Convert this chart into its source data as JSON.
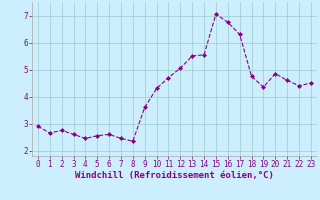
{
  "x": [
    0,
    1,
    2,
    3,
    4,
    5,
    6,
    7,
    8,
    9,
    10,
    11,
    12,
    13,
    14,
    15,
    16,
    17,
    18,
    19,
    20,
    21,
    22,
    23
  ],
  "y": [
    2.9,
    2.65,
    2.75,
    2.6,
    2.45,
    2.55,
    2.6,
    2.45,
    2.35,
    3.6,
    4.3,
    4.7,
    5.05,
    5.5,
    5.55,
    7.05,
    6.75,
    6.3,
    4.75,
    4.35,
    4.85,
    4.6,
    4.4,
    4.5
  ],
  "line_color": "#880088",
  "marker": "D",
  "marker_size": 2.0,
  "bg_color": "#cceeff",
  "grid_color": "#99cccc",
  "xlabel": "Windchill (Refroidissement éolien,°C)",
  "xlabel_color": "#880088",
  "xlabel_fontsize": 6.5,
  "tick_color": "#880088",
  "tick_fontsize": 5.5,
  "yticks": [
    2,
    3,
    4,
    5,
    6,
    7
  ],
  "ylim": [
    1.8,
    7.5
  ],
  "xlim": [
    -0.5,
    23.5
  ]
}
